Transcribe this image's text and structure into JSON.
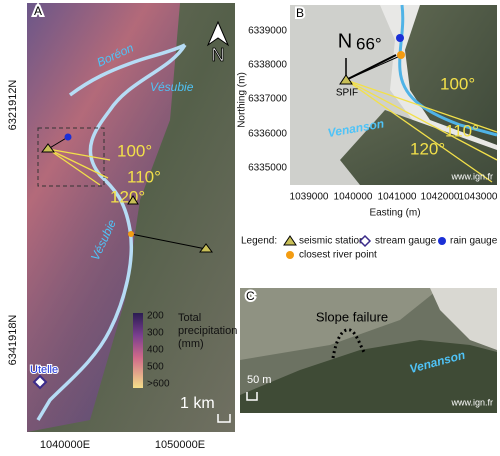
{
  "panel_a": {
    "label": "A",
    "north": "N",
    "rivers": [
      "Boréon",
      "Vésubie",
      "Vésubie"
    ],
    "angles": [
      "100°",
      "110°",
      "120°"
    ],
    "colorbar": {
      "title_lines": [
        "Total",
        "precipitation",
        "(mm)"
      ],
      "labels": [
        "200",
        "300",
        "400",
        "500",
        ">600"
      ]
    },
    "gauge": "Utelle",
    "scale": "1 km",
    "y_labels": [
      "6321912N",
      "6341918N"
    ],
    "x_labels": [
      "1040000E",
      "1050000E"
    ]
  },
  "panel_b": {
    "label": "B",
    "north": "N",
    "north_angle": "66°",
    "station": "SPIF",
    "angles": [
      "100°",
      "110°",
      "120°"
    ],
    "river": "Venanson",
    "credit": "www.ign.fr",
    "y_axis": {
      "title": "Northing (m)",
      "ticks": [
        "6339000",
        "6338000",
        "6337000",
        "6336000",
        "6335000"
      ]
    },
    "x_axis": {
      "title": "Easting (m)",
      "ticks": [
        "1039000",
        "1040000",
        "1041000",
        "1042000",
        "1043000"
      ]
    }
  },
  "legend": {
    "title": "Legend:",
    "items": [
      "seismic station",
      "stream gauge",
      "rain gauge",
      "closest river point"
    ]
  },
  "panel_c": {
    "label": "C",
    "feature": "Slope failure",
    "river": "Venanson",
    "scale": "50 m",
    "credit": "www.ign.fr"
  }
}
